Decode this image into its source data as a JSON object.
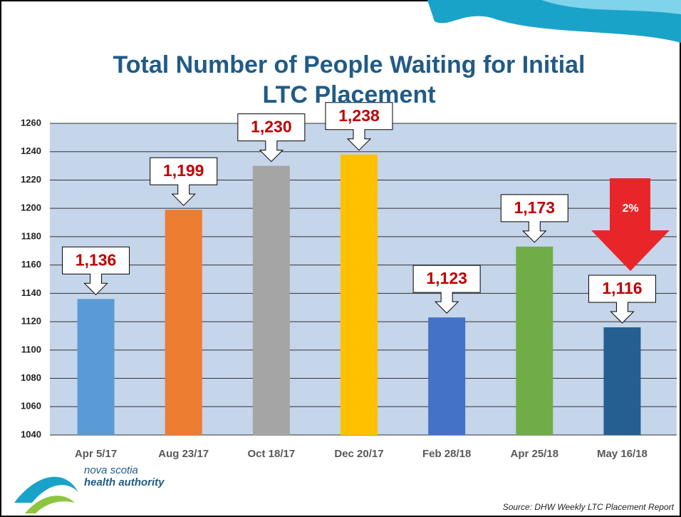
{
  "chart_data": {
    "type": "bar",
    "title": "Total Number of People Waiting for Initial LTC Placement",
    "categories": [
      "Apr 5/17",
      "Aug 23/17",
      "Oct 18/17",
      "Dec 20/17",
      "Feb 28/18",
      "Apr 25/18",
      "May 16/18"
    ],
    "values": [
      1136,
      1199,
      1230,
      1238,
      1123,
      1173,
      1116
    ],
    "value_labels": [
      "1,136",
      "1,199",
      "1,230",
      "1,238",
      "1,123",
      "1,173",
      "1,116"
    ],
    "colors": [
      "#5b9bd5",
      "#ed7d31",
      "#a5a5a5",
      "#ffc000",
      "#4472c4",
      "#70ad47",
      "#255e91"
    ],
    "ylim": [
      1040,
      1260
    ],
    "yticks": [
      1040,
      1060,
      1080,
      1100,
      1120,
      1140,
      1160,
      1180,
      1200,
      1220,
      1240,
      1260
    ],
    "grid": true,
    "annotation": "2%",
    "source": "Source: DHW Weekly LTC Placement Report",
    "logo": {
      "line1": "nova scotia",
      "line2": "health authority"
    }
  }
}
